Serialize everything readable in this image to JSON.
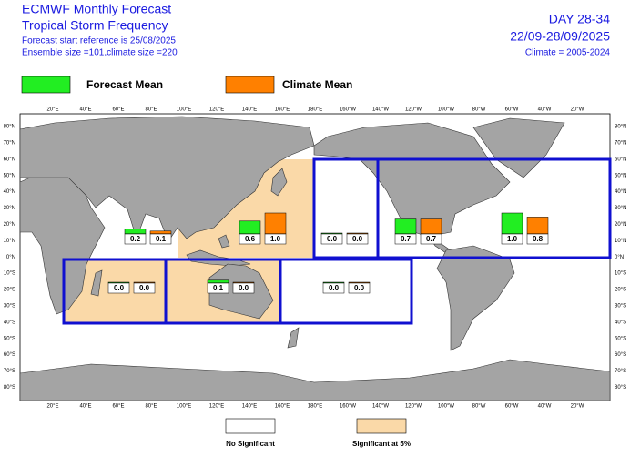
{
  "header": {
    "left": [
      "ECMWF Monthly Forecast",
      "Tropical Storm Frequency",
      "Forecast start reference is 25/08/2025",
      "Ensemble size =101,climate size =220"
    ],
    "right": [
      "DAY 28-34",
      "22/09-28/09/2025",
      "Climate = 2005-2024"
    ]
  },
  "legend": {
    "forecast": {
      "label": "Forecast Mean",
      "color": "#22ee22"
    },
    "climate": {
      "label": "Climate Mean",
      "color": "#ff8000"
    }
  },
  "map": {
    "lon_labels": [
      "20°E",
      "40°E",
      "60°E",
      "80°E",
      "100°E",
      "120°E",
      "140°E",
      "160°E",
      "180°E",
      "160°W",
      "140°W",
      "120°W",
      "100°W",
      "80°W",
      "60°W",
      "40°W",
      "20°W"
    ],
    "lat_labels": [
      "80°N",
      "70°N",
      "60°N",
      "50°N",
      "40°N",
      "30°N",
      "20°N",
      "10°N",
      "0°N",
      "10°S",
      "20°S",
      "30°S",
      "40°S",
      "50°S",
      "60°S",
      "70°S",
      "80°S"
    ],
    "shading_color": "#fad9a8",
    "box_color": "#1010d0",
    "regions": [
      {
        "forecast": {
          "value": 0.2,
          "label": "0.2"
        },
        "climate": {
          "value": 0.1,
          "label": "0.1"
        },
        "significant": false
      },
      {
        "forecast": {
          "value": 0.6,
          "label": "0.6"
        },
        "climate": {
          "value": 1.0,
          "label": "1.0"
        },
        "significant": true
      },
      {
        "forecast": {
          "value": 0.0,
          "label": "0.0"
        },
        "climate": {
          "value": 0.0,
          "label": "0.0"
        },
        "significant": false
      },
      {
        "forecast": {
          "value": 0.7,
          "label": "0.7"
        },
        "climate": {
          "value": 0.7,
          "label": "0.7"
        },
        "significant": false
      },
      {
        "forecast": {
          "value": 1.0,
          "label": "1.0"
        },
        "climate": {
          "value": 0.8,
          "label": "0.8"
        },
        "significant": false
      },
      {
        "forecast": {
          "value": 0.0,
          "label": "0.0"
        },
        "climate": {
          "value": 0.0,
          "label": "0.0"
        },
        "significant": true
      },
      {
        "forecast": {
          "value": 0.1,
          "label": "0.1"
        },
        "climate": {
          "value": 0.0,
          "label": "0.0"
        },
        "significant": true
      },
      {
        "forecast": {
          "value": 0.0,
          "label": "0.0"
        },
        "climate": {
          "value": 0.0,
          "label": "0.0"
        },
        "significant": false
      }
    ]
  },
  "footer": {
    "no_significant": "No Significant",
    "significant": "Significant at 5%"
  }
}
